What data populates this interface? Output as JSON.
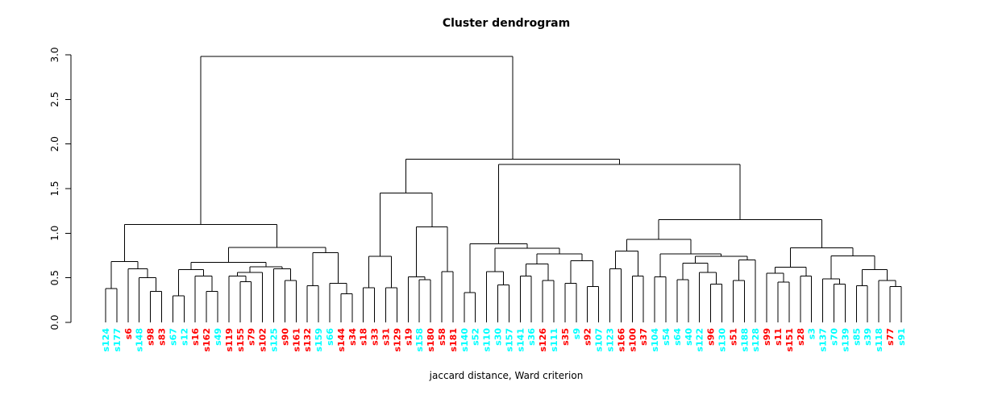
{
  "title": "Cluster dendrogram",
  "xlabel": "jaccard distance, Ward criterion",
  "colors": {
    "line": "#000000",
    "axis": "#000000",
    "cluster1": "#00ffff",
    "cluster2": "#ff0000"
  },
  "chart_data": {
    "type": "dendrogram",
    "title": "Cluster dendrogram",
    "xlabel": "jaccard distance, Ward criterion",
    "ylabel": "",
    "ylim": [
      0,
      3
    ],
    "yticks": [
      "0.0",
      "0.5",
      "1.0",
      "1.5",
      "2.0",
      "2.5",
      "3.0"
    ],
    "grid": false,
    "leaves": [
      {
        "label": "s124",
        "color": "cyan"
      },
      {
        "label": "s177",
        "color": "cyan"
      },
      {
        "label": "s6",
        "color": "red"
      },
      {
        "label": "s148",
        "color": "cyan"
      },
      {
        "label": "s98",
        "color": "red"
      },
      {
        "label": "s83",
        "color": "red"
      },
      {
        "label": "s67",
        "color": "cyan"
      },
      {
        "label": "s12",
        "color": "cyan"
      },
      {
        "label": "s16",
        "color": "red"
      },
      {
        "label": "s162",
        "color": "red"
      },
      {
        "label": "s49",
        "color": "cyan"
      },
      {
        "label": "s119",
        "color": "red"
      },
      {
        "label": "s155",
        "color": "red"
      },
      {
        "label": "s79",
        "color": "red"
      },
      {
        "label": "s102",
        "color": "red"
      },
      {
        "label": "s125",
        "color": "cyan"
      },
      {
        "label": "s90",
        "color": "red"
      },
      {
        "label": "s161",
        "color": "red"
      },
      {
        "label": "s132",
        "color": "red"
      },
      {
        "label": "s159",
        "color": "cyan"
      },
      {
        "label": "s66",
        "color": "cyan"
      },
      {
        "label": "s144",
        "color": "red"
      },
      {
        "label": "s34",
        "color": "red"
      },
      {
        "label": "s18",
        "color": "red"
      },
      {
        "label": "s33",
        "color": "red"
      },
      {
        "label": "s31",
        "color": "red"
      },
      {
        "label": "s129",
        "color": "red"
      },
      {
        "label": "s19",
        "color": "red"
      },
      {
        "label": "s158",
        "color": "cyan"
      },
      {
        "label": "s180",
        "color": "red"
      },
      {
        "label": "s58",
        "color": "red"
      },
      {
        "label": "s181",
        "color": "red"
      },
      {
        "label": "s140",
        "color": "cyan"
      },
      {
        "label": "s52",
        "color": "cyan"
      },
      {
        "label": "s110",
        "color": "cyan"
      },
      {
        "label": "s30",
        "color": "cyan"
      },
      {
        "label": "s157",
        "color": "cyan"
      },
      {
        "label": "s141",
        "color": "cyan"
      },
      {
        "label": "s36",
        "color": "cyan"
      },
      {
        "label": "s126",
        "color": "red"
      },
      {
        "label": "s111",
        "color": "cyan"
      },
      {
        "label": "s35",
        "color": "red"
      },
      {
        "label": "s9",
        "color": "cyan"
      },
      {
        "label": "s92",
        "color": "red"
      },
      {
        "label": "s107",
        "color": "cyan"
      },
      {
        "label": "s123",
        "color": "cyan"
      },
      {
        "label": "s166",
        "color": "red"
      },
      {
        "label": "s100",
        "color": "red"
      },
      {
        "label": "s37",
        "color": "red"
      },
      {
        "label": "s104",
        "color": "cyan"
      },
      {
        "label": "s54",
        "color": "cyan"
      },
      {
        "label": "s64",
        "color": "cyan"
      },
      {
        "label": "s40",
        "color": "cyan"
      },
      {
        "label": "s122",
        "color": "cyan"
      },
      {
        "label": "s96",
        "color": "red"
      },
      {
        "label": "s130",
        "color": "cyan"
      },
      {
        "label": "s51",
        "color": "red"
      },
      {
        "label": "s188",
        "color": "cyan"
      },
      {
        "label": "s128",
        "color": "cyan"
      },
      {
        "label": "s99",
        "color": "red"
      },
      {
        "label": "s11",
        "color": "red"
      },
      {
        "label": "s151",
        "color": "red"
      },
      {
        "label": "s28",
        "color": "red"
      },
      {
        "label": "s3",
        "color": "cyan"
      },
      {
        "label": "s137",
        "color": "cyan"
      },
      {
        "label": "s70",
        "color": "cyan"
      },
      {
        "label": "s139",
        "color": "cyan"
      },
      {
        "label": "s85",
        "color": "cyan"
      },
      {
        "label": "s39",
        "color": "cyan"
      },
      {
        "label": "s118",
        "color": "cyan"
      },
      {
        "label": "s77",
        "color": "red"
      },
      {
        "label": "s91",
        "color": "cyan"
      }
    ],
    "tree": {
      "h": 2.98,
      "c": [
        {
          "h": 1.1,
          "c": [
            {
              "h": 0.68,
              "c": [
                {
                  "h": 0.38,
                  "c": [
                    "s124",
                    "s177"
                  ]
                },
                {
                  "h": 0.6,
                  "c": [
                    "s6",
                    {
                      "h": 0.5,
                      "c": [
                        "s148",
                        {
                          "h": 0.35,
                          "c": [
                            "s98",
                            "s83"
                          ]
                        }
                      ]
                    }
                  ]
                }
              ]
            },
            {
              "h": 0.84,
              "c": [
                {
                  "h": 0.675,
                  "c": [
                    {
                      "h": 0.59,
                      "c": [
                        {
                          "h": 0.3,
                          "c": [
                            "s67",
                            "s12"
                          ]
                        },
                        {
                          "h": 0.52,
                          "c": [
                            "s16",
                            {
                              "h": 0.35,
                              "c": [
                                "s162",
                                "s49"
                              ]
                            }
                          ]
                        }
                      ]
                    },
                    {
                      "h": 0.625,
                      "c": [
                        {
                          "h": 0.56,
                          "c": [
                            {
                              "h": 0.52,
                              "c": [
                                "s119",
                                {
                                  "h": 0.455,
                                  "c": [
                                    "s155",
                                    "s79"
                                  ]
                                }
                              ]
                            },
                            "s102"
                          ]
                        },
                        {
                          "h": 0.6,
                          "c": [
                            "s125",
                            {
                              "h": 0.47,
                              "c": [
                                "s90",
                                "s161"
                              ]
                            }
                          ]
                        }
                      ]
                    }
                  ]
                },
                {
                  "h": 0.78,
                  "c": [
                    {
                      "h": 0.41,
                      "c": [
                        "s132",
                        "s159"
                      ]
                    },
                    {
                      "h": 0.44,
                      "c": [
                        "s66",
                        {
                          "h": 0.32,
                          "c": [
                            "s144",
                            "s34"
                          ]
                        }
                      ]
                    }
                  ]
                }
              ]
            }
          ]
        },
        {
          "h": 1.83,
          "c": [
            {
              "h": 1.45,
              "c": [
                {
                  "h": 0.74,
                  "c": [
                    {
                      "h": 0.39,
                      "c": [
                        "s18",
                        "s33"
                      ]
                    },
                    {
                      "h": 0.39,
                      "c": [
                        "s31",
                        "s129"
                      ]
                    }
                  ]
                },
                {
                  "h": 1.07,
                  "c": [
                    {
                      "h": 0.51,
                      "c": [
                        "s19",
                        {
                          "h": 0.48,
                          "c": [
                            "s158",
                            "s180"
                          ]
                        }
                      ]
                    },
                    {
                      "h": 0.57,
                      "c": [
                        "s58",
                        "s181"
                      ]
                    }
                  ]
                }
              ]
            },
            {
              "h": 1.77,
              "c": [
                {
                  "h": 0.88,
                  "c": [
                    {
                      "h": 0.335,
                      "c": [
                        "s140",
                        "s52"
                      ]
                    },
                    {
                      "h": 0.83,
                      "c": [
                        {
                          "h": 0.57,
                          "c": [
                            "s110",
                            {
                              "h": 0.42,
                              "c": [
                                "s30",
                                "s157"
                              ]
                            }
                          ]
                        },
                        {
                          "h": 0.77,
                          "c": [
                            {
                              "h": 0.655,
                              "c": [
                                {
                                  "h": 0.52,
                                  "c": [
                                    "s141",
                                    "s36"
                                  ]
                                },
                                {
                                  "h": 0.47,
                                  "c": [
                                    "s126",
                                    "s111"
                                  ]
                                }
                              ]
                            },
                            {
                              "h": 0.69,
                              "c": [
                                {
                                  "h": 0.44,
                                  "c": [
                                    "s35",
                                    "s9"
                                  ]
                                },
                                {
                                  "h": 0.4,
                                  "c": [
                                    "s92",
                                    "s107"
                                  ]
                                }
                              ]
                            }
                          ]
                        }
                      ]
                    }
                  ]
                },
                {
                  "h": 1.15,
                  "c": [
                    {
                      "h": 0.93,
                      "c": [
                        {
                          "h": 0.8,
                          "c": [
                            {
                              "h": 0.6,
                              "c": [
                                "s123",
                                "s166"
                              ]
                            },
                            {
                              "h": 0.52,
                              "c": [
                                "s100",
                                "s37"
                              ]
                            }
                          ]
                        },
                        {
                          "h": 0.77,
                          "c": [
                            {
                              "h": 0.51,
                              "c": [
                                "s104",
                                "s54"
                              ]
                            },
                            {
                              "h": 0.74,
                              "c": [
                                {
                                  "h": 0.665,
                                  "c": [
                                    {
                                      "h": 0.48,
                                      "c": [
                                        "s64",
                                        "s40"
                                      ]
                                    },
                                    {
                                      "h": 0.56,
                                      "c": [
                                        "s122",
                                        {
                                          "h": 0.43,
                                          "c": [
                                            "s96",
                                            "s130"
                                          ]
                                        }
                                      ]
                                    }
                                  ]
                                },
                                {
                                  "h": 0.7,
                                  "c": [
                                    {
                                      "h": 0.47,
                                      "c": [
                                        "s51",
                                        "s188"
                                      ]
                                    },
                                    "s128"
                                  ]
                                }
                              ]
                            }
                          ]
                        }
                      ]
                    },
                    {
                      "h": 0.835,
                      "c": [
                        {
                          "h": 0.62,
                          "c": [
                            {
                              "h": 0.55,
                              "c": [
                                "s99",
                                {
                                  "h": 0.45,
                                  "c": [
                                    "s11",
                                    "s151"
                                  ]
                                }
                              ]
                            },
                            {
                              "h": 0.52,
                              "c": [
                                "s28",
                                "s3"
                              ]
                            }
                          ]
                        },
                        {
                          "h": 0.745,
                          "c": [
                            {
                              "h": 0.49,
                              "c": [
                                "s137",
                                {
                                  "h": 0.43,
                                  "c": [
                                    "s70",
                                    "s139"
                                  ]
                                }
                              ]
                            },
                            {
                              "h": 0.59,
                              "c": [
                                {
                                  "h": 0.41,
                                  "c": [
                                    "s85",
                                    "s39"
                                  ]
                                },
                                {
                                  "h": 0.47,
                                  "c": [
                                    "s118",
                                    {
                                      "h": 0.4,
                                      "c": [
                                        "s77",
                                        "s91"
                                      ]
                                    }
                                  ]
                                }
                              ]
                            }
                          ]
                        }
                      ]
                    }
                  ]
                }
              ]
            }
          ]
        }
      ]
    }
  }
}
